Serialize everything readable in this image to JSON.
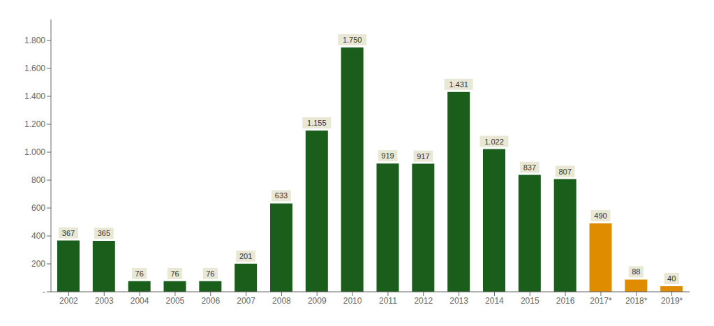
{
  "chart_data": {
    "type": "bar",
    "categories": [
      "2002",
      "2003",
      "2004",
      "2005",
      "2006",
      "2007",
      "2008",
      "2009",
      "2010",
      "2011",
      "2012",
      "2013",
      "2014",
      "2015",
      "2016",
      "2017*",
      "2018*",
      "2019*"
    ],
    "values": [
      367,
      365,
      76,
      76,
      76,
      201,
      633,
      1155,
      1750,
      919,
      917,
      1431,
      1022,
      837,
      807,
      490,
      88,
      40
    ],
    "value_labels": [
      "367",
      "365",
      "76",
      "76",
      "76",
      "201",
      "633",
      "1.155",
      "1.750",
      "919",
      "917",
      "1.431",
      "1.022",
      "837",
      "807",
      "490",
      "88",
      "40"
    ],
    "data_labels": true,
    "colors": [
      "#1b5e1b",
      "#1b5e1b",
      "#1b5e1b",
      "#1b5e1b",
      "#1b5e1b",
      "#1b5e1b",
      "#1b5e1b",
      "#1b5e1b",
      "#1b5e1b",
      "#1b5e1b",
      "#1b5e1b",
      "#1b5e1b",
      "#1b5e1b",
      "#1b5e1b",
      "#1b5e1b",
      "#e08c00",
      "#e08c00",
      "#e08c00"
    ],
    "ylim": [
      0,
      1950
    ],
    "yticks": [
      {
        "value": 0,
        "label": "-"
      },
      200,
      400,
      600,
      800,
      {
        "value": 1000,
        "label": "1.000"
      },
      {
        "value": 1200,
        "label": "1.200"
      },
      {
        "value": 1400,
        "label": "1.400"
      },
      {
        "value": 1600,
        "label": "1.600"
      },
      {
        "value": 1800,
        "label": "1.800"
      }
    ],
    "grid": false
  }
}
